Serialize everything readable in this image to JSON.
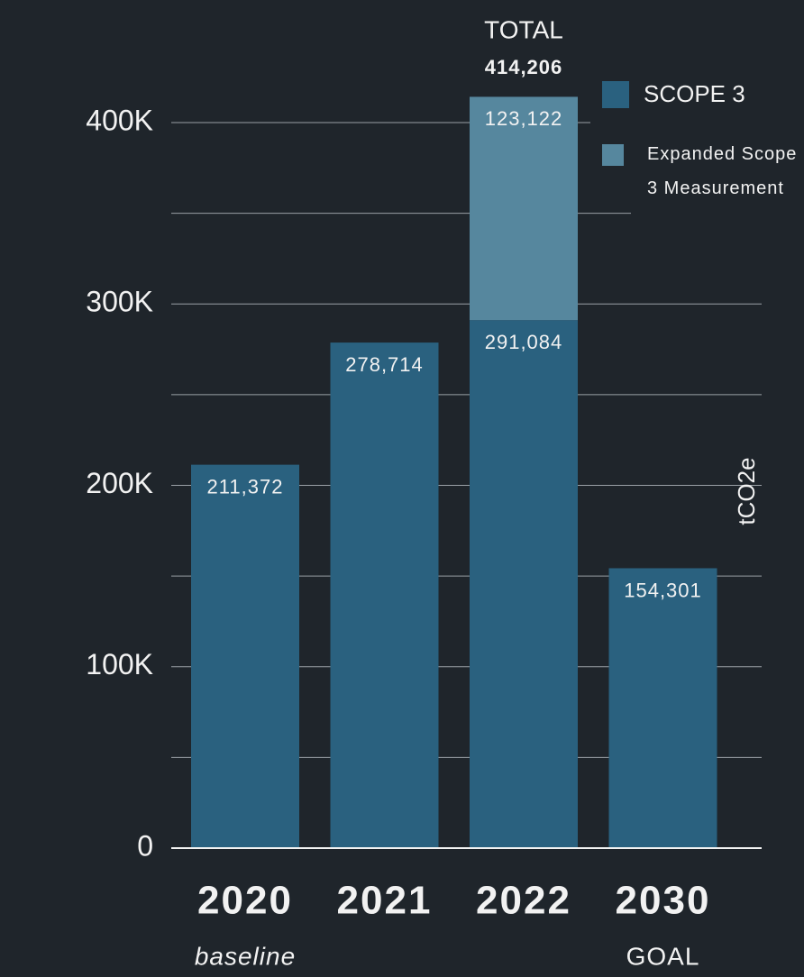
{
  "chart_data": {
    "type": "stacked_bar",
    "categories": [
      "2020",
      "2021",
      "2022",
      "2030"
    ],
    "category_notes": [
      "baseline",
      null,
      null,
      "GOAL"
    ],
    "series": [
      {
        "name": "SCOPE 3",
        "color": "#2a617f",
        "values": [
          211372,
          278714,
          291084,
          154301
        ],
        "value_labels": [
          "211,372",
          "278,714",
          "291,084",
          "154,301"
        ]
      },
      {
        "name": "Expanded Scope 3 Measurement",
        "color": "#56879e",
        "values": [
          null,
          null,
          123122,
          null
        ],
        "value_labels": [
          null,
          null,
          "123,122",
          null
        ]
      }
    ],
    "total": {
      "title": "TOTAL",
      "category": 2,
      "value": 414206,
      "label": "414,206"
    },
    "y_axis_label": "tCO2e",
    "ylim": [
      0,
      420000
    ],
    "yticks": [
      {
        "value": 0,
        "label": "0"
      },
      {
        "value": 100000,
        "label": "100K"
      },
      {
        "value": 200000,
        "label": "200K"
      },
      {
        "value": 300000,
        "label": "300K"
      },
      {
        "value": 400000,
        "label": "400K"
      }
    ],
    "minor_yticks": [
      50000,
      150000,
      250000,
      350000
    ],
    "grid": true
  }
}
